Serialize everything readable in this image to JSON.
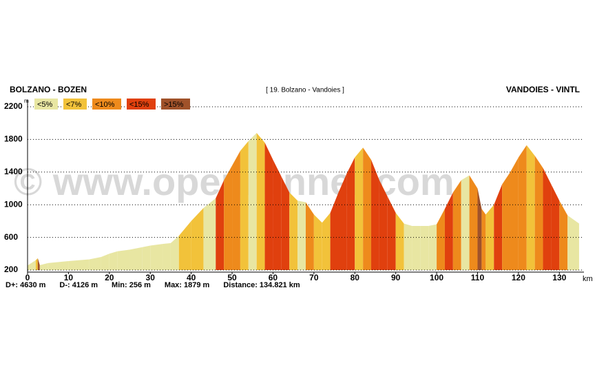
{
  "chart_data": {
    "type": "area",
    "title": "[ 19. Bolzano - Vandoies ]",
    "start_label": "BOLZANO - BOZEN",
    "end_label": "VANDOIES - VINTL",
    "watermark": "© www.openrunner.com",
    "x_label": "km",
    "y_label": "m",
    "stats": [
      "D+: 4630 m",
      "D-: 4126 m",
      "Min: 256 m",
      "Max: 1879 m",
      "Distance: 134.821 km"
    ],
    "legend": [
      {
        "value": 5,
        "label": "<5%",
        "color": "#e8e6a2"
      },
      {
        "value": 7,
        "label": "<7%",
        "color": "#f2c23a"
      },
      {
        "value": 10,
        "label": "<10%",
        "color": "#ee8a1c"
      },
      {
        "value": 15,
        "label": "<15%",
        "color": "#e0400e"
      },
      {
        "value": 15,
        "label": ">15%",
        "color": "#a0522a"
      }
    ],
    "x": [
      0,
      2,
      2.5,
      3,
      5,
      8,
      10,
      15,
      18,
      20,
      22,
      25,
      28,
      30,
      33,
      35,
      37,
      40,
      43,
      46,
      48,
      50,
      52,
      54,
      56,
      58,
      60,
      62,
      64,
      66,
      68,
      70,
      72,
      74,
      76,
      78,
      80,
      82,
      84,
      86,
      88,
      90,
      92,
      94,
      96,
      98,
      100,
      102,
      104,
      106,
      108,
      110,
      111,
      112,
      114,
      116,
      118,
      120,
      122,
      124,
      126,
      128,
      130,
      132,
      134.821
    ],
    "values": [
      256,
      320,
      345,
      260,
      285,
      300,
      310,
      330,
      360,
      400,
      430,
      450,
      480,
      500,
      520,
      530,
      620,
      800,
      960,
      1080,
      1300,
      1480,
      1660,
      1780,
      1879,
      1760,
      1550,
      1350,
      1150,
      1050,
      1030,
      880,
      780,
      900,
      1150,
      1380,
      1580,
      1700,
      1550,
      1300,
      1100,
      900,
      770,
      740,
      740,
      740,
      760,
      950,
      1150,
      1300,
      1360,
      1200,
      950,
      880,
      1000,
      1250,
      1400,
      1580,
      1730,
      1600,
      1450,
      1250,
      1050,
      870,
      770
    ],
    "xlim": [
      0,
      135
    ],
    "ylim": [
      200,
      2200
    ],
    "xticks": [
      0,
      10,
      20,
      30,
      40,
      50,
      60,
      70,
      80,
      90,
      100,
      110,
      120,
      130
    ],
    "yticks": [
      200,
      600,
      1000,
      1400,
      1800,
      2200
    ],
    "grid": true
  }
}
